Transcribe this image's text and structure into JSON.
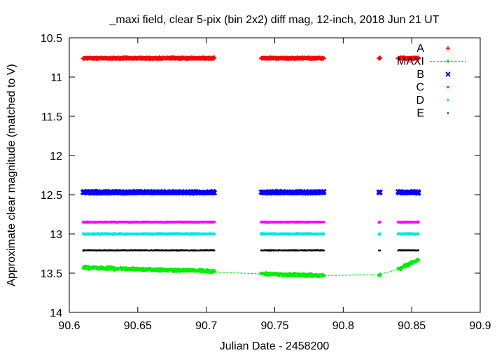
{
  "chart_data": {
    "type": "scatter",
    "title": "_maxi field, clear 5-pix (bin 2x2) diff mag, 12-inch, 2018 Jun 21 UT",
    "xlabel": "Julian Date - 2458200",
    "ylabel": "Approximate clear magnitude (matched to V)",
    "xlim": [
      90.6,
      90.9
    ],
    "ylim": [
      10.5,
      14
    ],
    "y_inverted": true,
    "grid": false,
    "legend_position": "top-right",
    "x_ticks": [
      "90.6",
      "90.65",
      "90.7",
      "90.75",
      "90.8",
      "90.85",
      "90.9"
    ],
    "y_ticks": [
      "10.5",
      "11",
      "11.5",
      "12",
      "12.5",
      "13",
      "13.5",
      "14"
    ],
    "observation_segments": [
      [
        90.61,
        90.706
      ],
      [
        90.74,
        90.786
      ],
      [
        90.826,
        90.827
      ],
      [
        90.84,
        90.855
      ]
    ],
    "series": [
      {
        "name": "A",
        "marker": "plus",
        "color": "#ff0000",
        "mean_mag": 10.76,
        "scatter": 0.012
      },
      {
        "name": "MAXI",
        "marker": "circle-line",
        "color": "#00ee00",
        "mean_mag": 13.45,
        "scatter": 0.025,
        "trend": [
          [
            90.61,
            13.43
          ],
          [
            90.7,
            13.47
          ],
          [
            90.71,
            13.49
          ],
          [
            90.76,
            13.52
          ],
          [
            90.786,
            13.53
          ],
          [
            90.826,
            13.52
          ],
          [
            90.84,
            13.45
          ],
          [
            90.85,
            13.37
          ],
          [
            90.855,
            13.33
          ]
        ]
      },
      {
        "name": "B",
        "marker": "x",
        "color": "#0000ff",
        "mean_mag": 12.47,
        "scatter": 0.015
      },
      {
        "name": "C",
        "marker": "square",
        "color": "#ff00ff",
        "mean_mag": 12.85,
        "scatter": 0.008
      },
      {
        "name": "D",
        "marker": "square",
        "color": "#00e5e5",
        "mean_mag": 13.0,
        "scatter": 0.012
      },
      {
        "name": "E",
        "marker": "dot",
        "color": "#000000",
        "mean_mag": 13.21,
        "scatter": 0.008
      }
    ]
  }
}
